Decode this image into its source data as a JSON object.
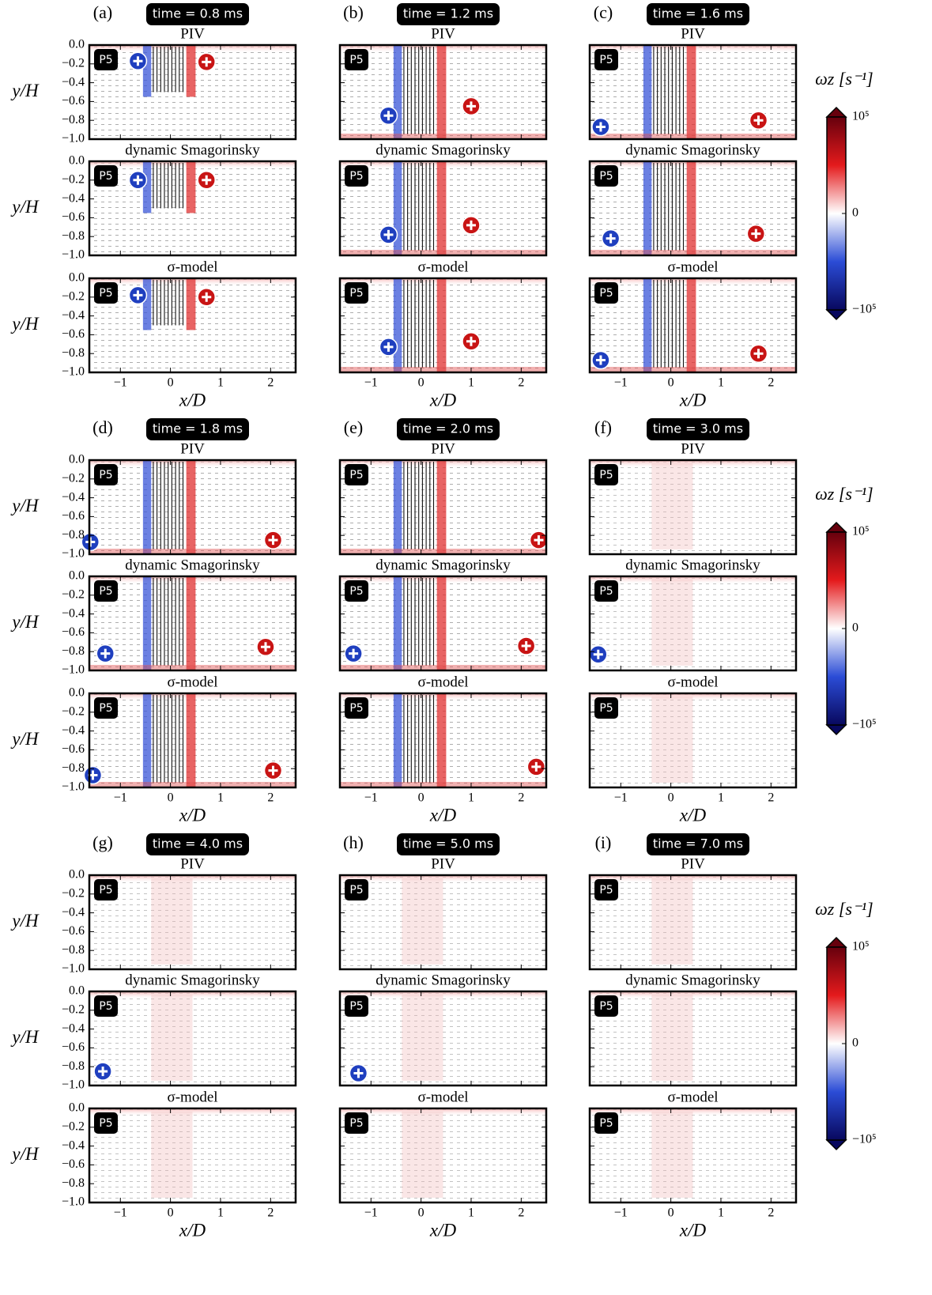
{
  "figure": {
    "xlabel": "x/D",
    "ylabel": "y/H",
    "xlim": [
      -1.62,
      2.5
    ],
    "ylim": [
      -1.0,
      0.0
    ],
    "xticks": [
      {
        "value": -1,
        "label": "−1"
      },
      0,
      1,
      2
    ],
    "yticks": [
      {
        "value": 0,
        "label": "0.0"
      },
      {
        "value": -0.2,
        "label": "−0.2"
      },
      {
        "value": -0.4,
        "label": "−0.4"
      },
      {
        "value": -0.6,
        "label": "−0.6"
      },
      {
        "value": -0.8,
        "label": "−0.8"
      },
      {
        "value": -1.0,
        "label": "−1.0"
      }
    ],
    "badge": "P5",
    "subplot_titles": [
      "PIV",
      "dynamic Smagorinsky",
      "σ-model"
    ],
    "colorbar": {
      "label": "ωz [s⁻¹]",
      "clim": [
        -100000,
        100000
      ],
      "ticks": [
        {
          "value": 100000,
          "label": "10⁵"
        },
        0,
        {
          "value": -100000,
          "label": "−10⁵"
        }
      ],
      "colors": [
        "#67000d",
        "#e41a1c",
        "#ffffff",
        "#2b4cd6",
        "#08085e"
      ]
    },
    "panels": [
      {
        "label": "(a)",
        "time": "time = 0.8 ms",
        "rows": [
          [
            {
              "x": -0.65,
              "y": -0.17,
              "color": "#1f3fbf"
            },
            {
              "x": 0.72,
              "y": -0.18,
              "color": "#c81414"
            }
          ],
          [
            {
              "x": -0.65,
              "y": -0.2,
              "color": "#1f3fbf"
            },
            {
              "x": 0.72,
              "y": -0.2,
              "color": "#c81414"
            }
          ],
          [
            {
              "x": -0.65,
              "y": -0.18,
              "color": "#1f3fbf"
            },
            {
              "x": 0.72,
              "y": -0.2,
              "color": "#c81414"
            }
          ]
        ]
      },
      {
        "label": "(b)",
        "time": "time = 1.2 ms",
        "rows": [
          [
            {
              "x": -0.65,
              "y": -0.75,
              "color": "#1f3fbf"
            },
            {
              "x": 1.0,
              "y": -0.65,
              "color": "#c81414"
            }
          ],
          [
            {
              "x": -0.65,
              "y": -0.78,
              "color": "#1f3fbf"
            },
            {
              "x": 1.0,
              "y": -0.68,
              "color": "#c81414"
            }
          ],
          [
            {
              "x": -0.65,
              "y": -0.73,
              "color": "#1f3fbf"
            },
            {
              "x": 1.0,
              "y": -0.67,
              "color": "#c81414"
            }
          ]
        ]
      },
      {
        "label": "(c)",
        "time": "time = 1.6 ms",
        "rows": [
          [
            {
              "x": -1.4,
              "y": -0.87,
              "color": "#1f3fbf"
            },
            {
              "x": 1.75,
              "y": -0.8,
              "color": "#c81414"
            }
          ],
          [
            {
              "x": -1.2,
              "y": -0.82,
              "color": "#1f3fbf"
            },
            {
              "x": 1.7,
              "y": -0.77,
              "color": "#c81414"
            }
          ],
          [
            {
              "x": -1.4,
              "y": -0.87,
              "color": "#1f3fbf"
            },
            {
              "x": 1.75,
              "y": -0.8,
              "color": "#c81414"
            }
          ]
        ]
      },
      {
        "label": "(d)",
        "time": "time = 1.8 ms",
        "rows": [
          [
            {
              "x": -1.6,
              "y": -0.87,
              "color": "#1f3fbf"
            },
            {
              "x": 2.05,
              "y": -0.85,
              "color": "#c81414"
            }
          ],
          [
            {
              "x": -1.3,
              "y": -0.82,
              "color": "#1f3fbf"
            },
            {
              "x": 1.9,
              "y": -0.75,
              "color": "#c81414"
            }
          ],
          [
            {
              "x": -1.55,
              "y": -0.87,
              "color": "#1f3fbf"
            },
            {
              "x": 2.05,
              "y": -0.82,
              "color": "#c81414"
            }
          ]
        ]
      },
      {
        "label": "(e)",
        "time": "time = 2.0 ms",
        "rows": [
          [
            {
              "x": 2.35,
              "y": -0.85,
              "color": "#c81414"
            }
          ],
          [
            {
              "x": -1.35,
              "y": -0.82,
              "color": "#1f3fbf"
            },
            {
              "x": 2.1,
              "y": -0.74,
              "color": "#c81414"
            }
          ],
          [
            {
              "x": 2.3,
              "y": -0.78,
              "color": "#c81414"
            }
          ]
        ]
      },
      {
        "label": "(f)",
        "time": "time = 3.0 ms",
        "rows": [
          [],
          [
            {
              "x": -1.45,
              "y": -0.83,
              "color": "#1f3fbf"
            }
          ],
          []
        ]
      },
      {
        "label": "(g)",
        "time": "time = 4.0 ms",
        "rows": [
          [],
          [
            {
              "x": -1.35,
              "y": -0.85,
              "color": "#1f3fbf"
            }
          ],
          []
        ]
      },
      {
        "label": "(h)",
        "time": "time = 5.0 ms",
        "rows": [
          [],
          [
            {
              "x": -1.25,
              "y": -0.87,
              "color": "#1f3fbf"
            }
          ],
          []
        ]
      },
      {
        "label": "(i)",
        "time": "time = 7.0 ms",
        "rows": [
          [],
          [],
          []
        ]
      }
    ]
  }
}
